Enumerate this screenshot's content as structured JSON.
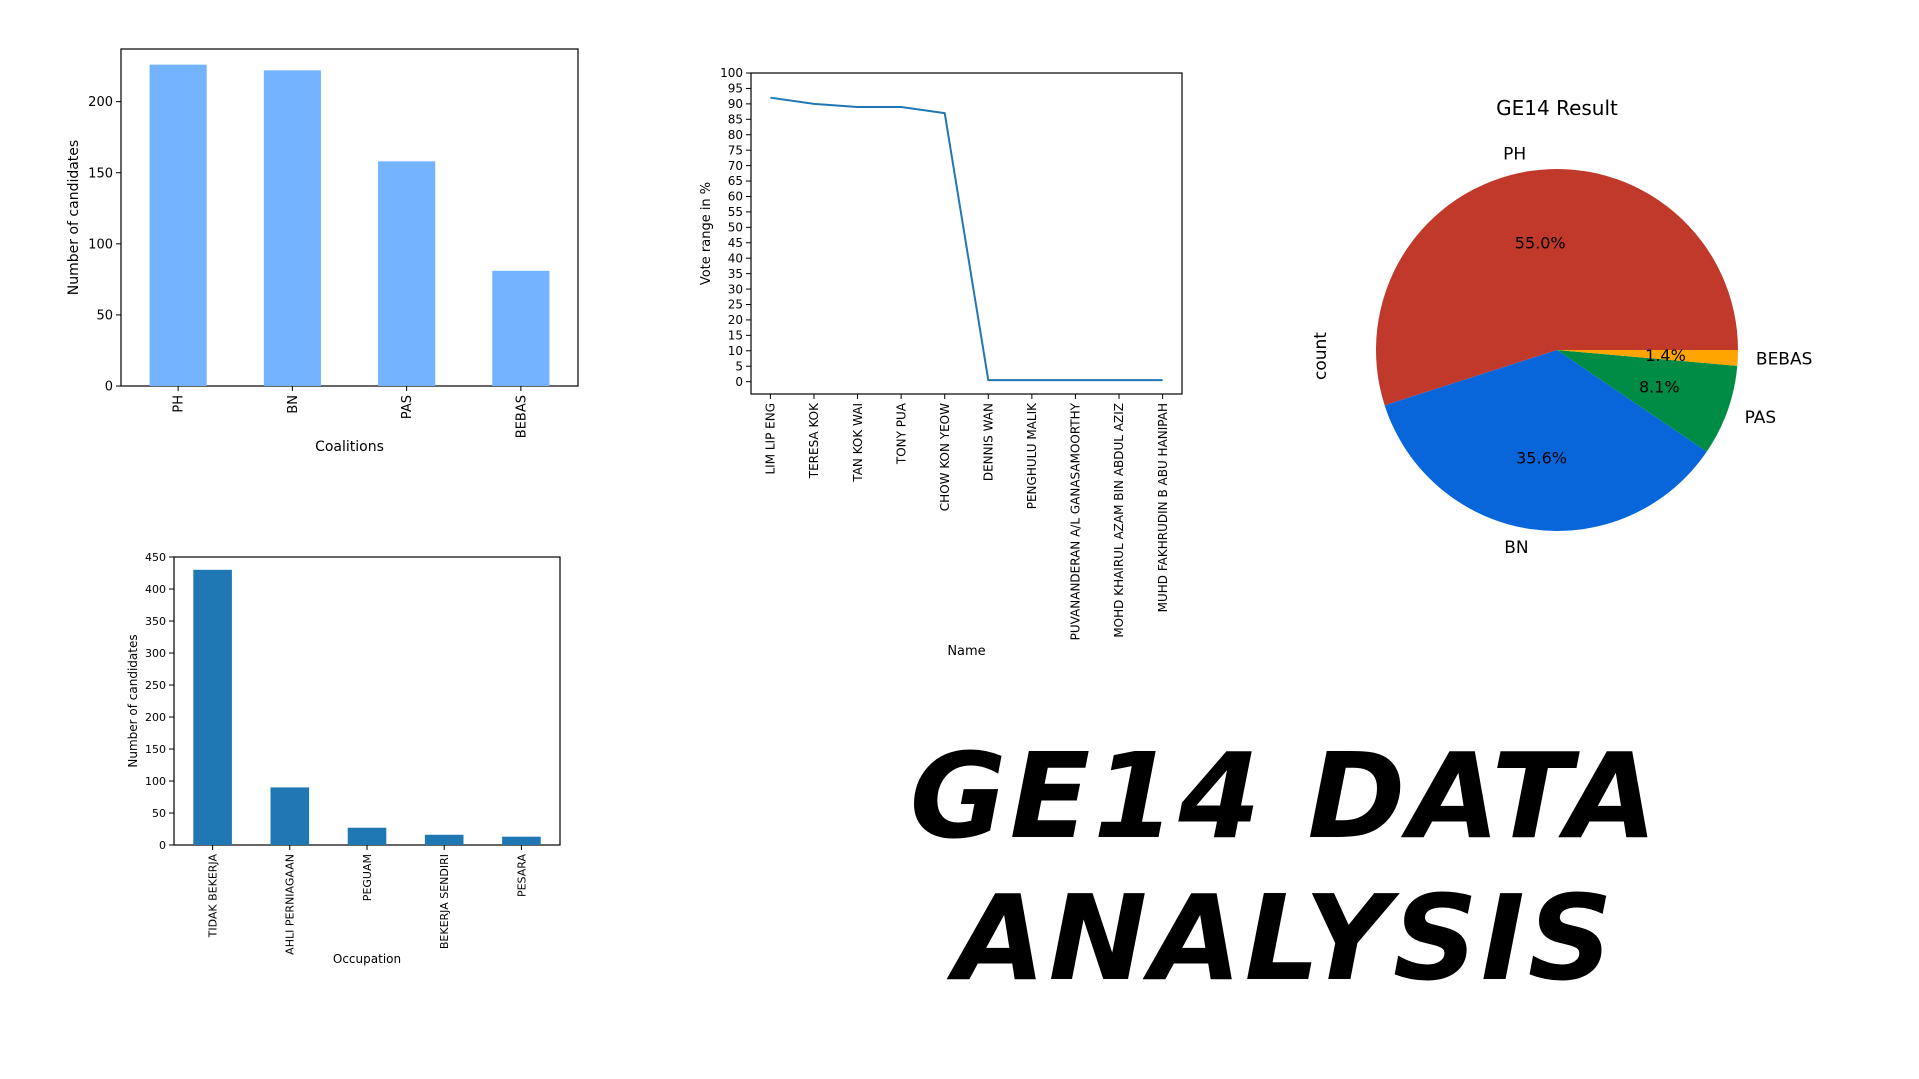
{
  "headline": {
    "line1": "GE14 DATA",
    "line2": "ANALYSIS"
  },
  "chart_data": [
    {
      "type": "bar",
      "categories": [
        "PH",
        "BN",
        "PAS",
        "BEBAS"
      ],
      "values": [
        226,
        222,
        158,
        81
      ],
      "xlabel": "Coalitions",
      "ylabel": "Number of candidates",
      "ylim": [
        0,
        237
      ],
      "yticks": [
        0,
        50,
        100,
        150,
        200
      ],
      "color": "#74b3ff",
      "grid": false
    },
    {
      "type": "line",
      "categories": [
        "LIM LIP ENG",
        "TERESA KOK",
        "TAN KOK WAI",
        "TONY PUA",
        "CHOW KON YEOW",
        "DENNIS WAN",
        "PENGHULU MALIK",
        "PUVANANDERAN A/L GANASAMOORTHY",
        "MOHD KHAIRUL AZAM BIN ABDUL AZIZ",
        "MUHD FAKHRUDIN B ABU HANIPAH"
      ],
      "values": [
        92,
        90,
        89,
        89,
        87,
        0.5,
        0.5,
        0.5,
        0.5,
        0.5
      ],
      "xlabel": "Name",
      "ylabel": "Vote range in %",
      "ylim": [
        -4,
        100
      ],
      "yticks": [
        0,
        5,
        10,
        15,
        20,
        25,
        30,
        35,
        40,
        45,
        50,
        55,
        60,
        65,
        70,
        75,
        80,
        85,
        90,
        95,
        100
      ],
      "color": "#1f77b4",
      "grid": false
    },
    {
      "type": "pie",
      "title": "GE14 Result",
      "ylabel": "count",
      "labels": [
        "PH",
        "BN",
        "PAS",
        "BEBAS"
      ],
      "percent_labels": [
        "55.0%",
        "35.6%",
        "8.1%",
        "1.4%"
      ],
      "values": [
        55.0,
        35.6,
        8.1,
        1.4
      ],
      "colors": [
        "#c0392b",
        "#0866da",
        "#008c45",
        "#ffa500"
      ]
    },
    {
      "type": "bar",
      "categories": [
        "TIDAK BEKERJA",
        "AHLI PERNIAGAAN",
        "PEGUAM",
        "BEKERJA SENDIRI",
        "PESARA"
      ],
      "values": [
        430,
        90,
        27,
        16,
        13
      ],
      "xlabel": "Occupation",
      "ylabel": "Number of candidates",
      "ylim": [
        0,
        450
      ],
      "yticks": [
        0,
        50,
        100,
        150,
        200,
        250,
        300,
        350,
        400,
        450
      ],
      "color": "#1f77b4",
      "grid": false
    }
  ]
}
